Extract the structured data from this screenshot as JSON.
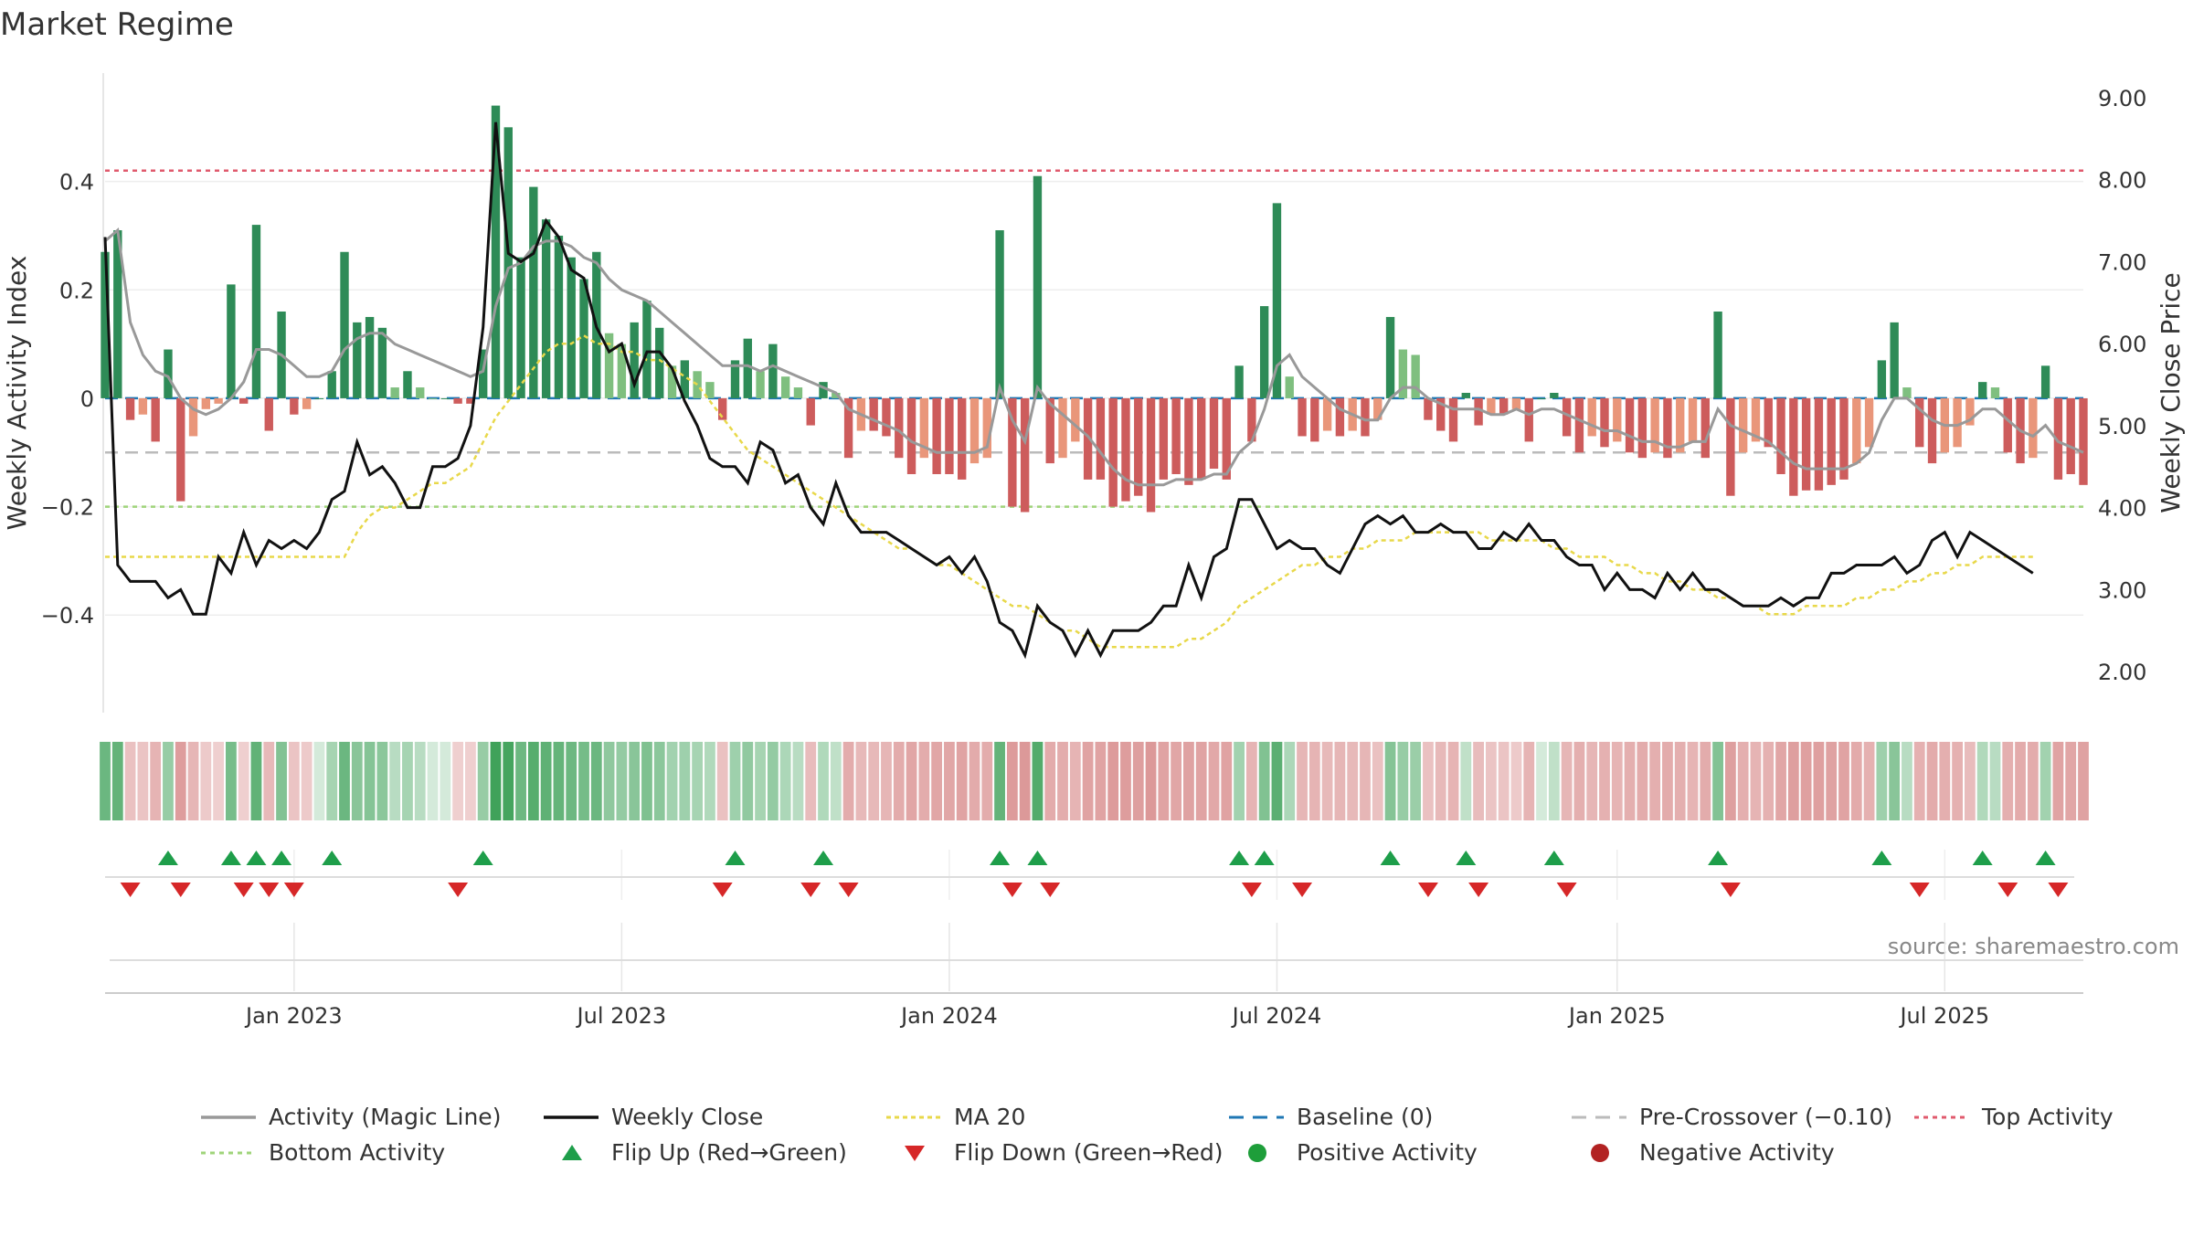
{
  "chart_data": {
    "type": "bar",
    "title": "Market Regime",
    "ylabel_left": "Weekly Activity Index",
    "ylabel_right": "Weekly Close Price",
    "source": "source: sharemaestro.com",
    "x_ticks": [
      "Jan 2023",
      "Jul 2023",
      "Jan 2024",
      "Jul 2024",
      "Jan 2025",
      "Jul 2025"
    ],
    "y_left_ticks": [
      "0.4",
      "0.2",
      "0",
      "−0.2",
      "−0.4"
    ],
    "y_left_tick_values": [
      0.4,
      0.2,
      0,
      -0.2,
      -0.4
    ],
    "y_right_ticks": [
      "9.00",
      "8.00",
      "7.00",
      "6.00",
      "5.00",
      "4.00",
      "3.00",
      "2.00"
    ],
    "y_right_tick_values": [
      9,
      8,
      7,
      6,
      5,
      4,
      3,
      2
    ],
    "ylim_left": [
      -0.58,
      0.6
    ],
    "ylim_right": [
      1.5,
      9.3
    ],
    "week_range": [
      0,
      157
    ],
    "reference_lines": {
      "top_activity": 0.42,
      "baseline": 0,
      "pre_crossover": -0.1,
      "bottom_activity": -0.2
    },
    "activity": [
      0.27,
      0.31,
      -0.04,
      -0.03,
      -0.08,
      0.09,
      -0.19,
      -0.07,
      -0.02,
      -0.01,
      0.21,
      -0.01,
      0.32,
      -0.06,
      0.16,
      -0.03,
      -0.02,
      0.0,
      0.05,
      0.27,
      0.14,
      0.15,
      0.13,
      0.02,
      0.05,
      0.02,
      0.0,
      0.0,
      -0.01,
      -0.01,
      0.09,
      0.54,
      0.5,
      0.26,
      0.39,
      0.33,
      0.3,
      0.26,
      0.22,
      0.27,
      0.12,
      0.1,
      0.14,
      0.18,
      0.13,
      0.06,
      0.07,
      0.05,
      0.03,
      -0.04,
      0.07,
      0.11,
      0.05,
      0.1,
      0.04,
      0.02,
      -0.05,
      0.03,
      0.01,
      -0.11,
      -0.06,
      -0.06,
      -0.07,
      -0.11,
      -0.14,
      -0.11,
      -0.14,
      -0.14,
      -0.15,
      -0.12,
      -0.11,
      0.31,
      -0.2,
      -0.21,
      0.41,
      -0.12,
      -0.11,
      -0.08,
      -0.15,
      -0.15,
      -0.2,
      -0.19,
      -0.18,
      -0.21,
      -0.15,
      -0.14,
      -0.16,
      -0.15,
      -0.13,
      -0.15,
      0.06,
      -0.08,
      0.17,
      0.36,
      0.04,
      -0.07,
      -0.08,
      -0.06,
      -0.07,
      -0.06,
      -0.07,
      -0.04,
      0.15,
      0.09,
      0.08,
      -0.04,
      -0.06,
      -0.08,
      0.01,
      -0.05,
      -0.03,
      -0.03,
      -0.02,
      -0.08,
      0.0,
      0.01,
      -0.07,
      -0.1,
      -0.07,
      -0.09,
      -0.08,
      -0.1,
      -0.11,
      -0.1,
      -0.11,
      -0.1,
      -0.08,
      -0.11,
      0.16,
      -0.18,
      -0.1,
      -0.08,
      -0.09,
      -0.14,
      -0.18,
      -0.17,
      -0.17,
      -0.16,
      -0.15,
      -0.12,
      -0.09,
      0.07,
      0.14,
      0.02,
      -0.09,
      -0.12,
      -0.1,
      -0.09,
      -0.05,
      0.03,
      0.02,
      -0.1,
      -0.12,
      -0.11,
      0.06,
      -0.15,
      -0.14,
      -0.16
    ],
    "magic_line": [
      0.29,
      0.31,
      0.14,
      0.08,
      0.05,
      0.04,
      0.0,
      -0.02,
      -0.03,
      -0.02,
      0.0,
      0.03,
      0.09,
      0.09,
      0.08,
      0.06,
      0.04,
      0.04,
      0.05,
      0.09,
      0.11,
      0.12,
      0.12,
      0.1,
      0.09,
      0.08,
      0.07,
      0.06,
      0.05,
      0.04,
      0.05,
      0.17,
      0.24,
      0.25,
      0.28,
      0.29,
      0.29,
      0.28,
      0.26,
      0.25,
      0.22,
      0.2,
      0.19,
      0.18,
      0.16,
      0.14,
      0.12,
      0.1,
      0.08,
      0.06,
      0.06,
      0.06,
      0.05,
      0.06,
      0.05,
      0.04,
      0.03,
      0.02,
      0.01,
      -0.02,
      -0.03,
      -0.04,
      -0.05,
      -0.06,
      -0.08,
      -0.09,
      -0.1,
      -0.1,
      -0.1,
      -0.1,
      -0.09,
      0.02,
      -0.04,
      -0.08,
      0.02,
      -0.01,
      -0.03,
      -0.05,
      -0.07,
      -0.1,
      -0.13,
      -0.15,
      -0.16,
      -0.16,
      -0.16,
      -0.15,
      -0.15,
      -0.15,
      -0.14,
      -0.14,
      -0.1,
      -0.08,
      -0.02,
      0.06,
      0.08,
      0.04,
      0.02,
      0.0,
      -0.02,
      -0.03,
      -0.04,
      -0.04,
      0.0,
      0.02,
      0.02,
      0.0,
      -0.01,
      -0.02,
      -0.02,
      -0.02,
      -0.03,
      -0.03,
      -0.02,
      -0.03,
      -0.02,
      -0.02,
      -0.03,
      -0.04,
      -0.05,
      -0.06,
      -0.06,
      -0.07,
      -0.08,
      -0.08,
      -0.09,
      -0.09,
      -0.08,
      -0.08,
      -0.02,
      -0.05,
      -0.06,
      -0.07,
      -0.08,
      -0.1,
      -0.12,
      -0.13,
      -0.13,
      -0.13,
      -0.13,
      -0.12,
      -0.1,
      -0.04,
      0.0,
      0.0,
      -0.02,
      -0.04,
      -0.05,
      -0.05,
      -0.04,
      -0.02,
      -0.02,
      -0.04,
      -0.06,
      -0.07,
      -0.05,
      -0.08,
      -0.09,
      -0.1
    ],
    "weekly_close": [
      7.3,
      3.3,
      3.1,
      3.1,
      3.1,
      2.9,
      3.0,
      2.7,
      2.7,
      3.4,
      3.2,
      3.7,
      3.3,
      3.6,
      3.5,
      3.6,
      3.5,
      3.7,
      4.1,
      4.2,
      4.8,
      4.4,
      4.5,
      4.3,
      4.0,
      4.0,
      4.5,
      4.5,
      4.6,
      5.0,
      6.2,
      8.7,
      7.1,
      7.0,
      7.1,
      7.5,
      7.3,
      6.9,
      6.8,
      6.2,
      5.9,
      6.0,
      5.5,
      5.9,
      5.9,
      5.7,
      5.3,
      5.0,
      4.6,
      4.5,
      4.5,
      4.3,
      4.8,
      4.7,
      4.3,
      4.4,
      4.0,
      3.8,
      4.3,
      3.9,
      3.7,
      3.7,
      3.7,
      3.6,
      3.5,
      3.4,
      3.3,
      3.4,
      3.2,
      3.4,
      3.1,
      2.6,
      2.5,
      2.2,
      2.8,
      2.6,
      2.5,
      2.2,
      2.5,
      2.2,
      2.5,
      2.5,
      2.5,
      2.6,
      2.8,
      2.8,
      3.3,
      2.9,
      3.4,
      3.5,
      4.1,
      4.1,
      3.8,
      3.5,
      3.6,
      3.5,
      3.5,
      3.3,
      3.2,
      3.5,
      3.8,
      3.9,
      3.8,
      3.9,
      3.7,
      3.7,
      3.8,
      3.7,
      3.7,
      3.5,
      3.5,
      3.7,
      3.6,
      3.8,
      3.6,
      3.6,
      3.4,
      3.3,
      3.3,
      3.0,
      3.2,
      3.0,
      3.0,
      2.9,
      3.2,
      3.0,
      3.2,
      3.0,
      3.0,
      2.9,
      2.8,
      2.8,
      2.8,
      2.9,
      2.8,
      2.9,
      2.9,
      3.2,
      3.2,
      3.3,
      3.3,
      3.3,
      3.4,
      3.2,
      3.3,
      3.6,
      3.7,
      3.4,
      3.7,
      3.6,
      3.5,
      3.4,
      3.3,
      3.2
    ],
    "ma20": [
      3.4,
      3.4,
      3.4,
      3.4,
      3.4,
      3.4,
      3.4,
      3.4,
      3.4,
      3.4,
      3.4,
      3.4,
      3.4,
      3.4,
      3.4,
      3.4,
      3.4,
      3.4,
      3.4,
      3.4,
      3.7,
      3.9,
      4.0,
      4.0,
      4.1,
      4.2,
      4.3,
      4.3,
      4.4,
      4.5,
      4.8,
      5.1,
      5.3,
      5.5,
      5.7,
      5.9,
      6.0,
      6.0,
      6.1,
      6.0,
      6.0,
      5.9,
      5.9,
      5.8,
      5.8,
      5.7,
      5.6,
      5.5,
      5.3,
      5.1,
      4.9,
      4.7,
      4.6,
      4.5,
      4.4,
      4.3,
      4.2,
      4.1,
      4.0,
      3.9,
      3.8,
      3.7,
      3.6,
      3.5,
      3.5,
      3.4,
      3.3,
      3.3,
      3.2,
      3.1,
      3.0,
      2.9,
      2.8,
      2.8,
      2.7,
      2.6,
      2.5,
      2.5,
      2.4,
      2.3,
      2.3,
      2.3,
      2.3,
      2.3,
      2.3,
      2.3,
      2.4,
      2.4,
      2.5,
      2.6,
      2.8,
      2.9,
      3.0,
      3.1,
      3.2,
      3.3,
      3.3,
      3.4,
      3.4,
      3.5,
      3.5,
      3.6,
      3.6,
      3.6,
      3.7,
      3.7,
      3.7,
      3.7,
      3.7,
      3.7,
      3.6,
      3.6,
      3.6,
      3.6,
      3.6,
      3.5,
      3.5,
      3.4,
      3.4,
      3.4,
      3.3,
      3.3,
      3.2,
      3.2,
      3.1,
      3.1,
      3.0,
      3.0,
      2.9,
      2.9,
      2.8,
      2.8,
      2.7,
      2.7,
      2.7,
      2.8,
      2.8,
      2.8,
      2.8,
      2.9,
      2.9,
      3.0,
      3.0,
      3.1,
      3.1,
      3.2,
      3.2,
      3.3,
      3.3,
      3.4,
      3.4,
      3.4,
      3.4,
      3.4
    ]
  },
  "legend": {
    "items": [
      {
        "key": "magic",
        "label": "Activity (Magic Line)"
      },
      {
        "key": "close",
        "label": "Weekly Close"
      },
      {
        "key": "ma",
        "label": "MA 20"
      },
      {
        "key": "base",
        "label": "Baseline (0)"
      },
      {
        "key": "pre",
        "label": "Pre-Crossover (−0.10)"
      },
      {
        "key": "top",
        "label": "Top Activity"
      },
      {
        "key": "bottom",
        "label": "Bottom Activity"
      },
      {
        "key": "flipup",
        "label": "Flip Up (Red→Green)"
      },
      {
        "key": "flipdown",
        "label": "Flip Down (Green→Red)"
      },
      {
        "key": "pos",
        "label": "Positive Activity"
      },
      {
        "key": "neg",
        "label": "Negative Activity"
      }
    ]
  },
  "colors": {
    "green_strong": "#2e8b57",
    "green_light": "#7fbf7f",
    "red_strong": "#cd5c5c",
    "red_light": "#e9967a",
    "close": "#111111",
    "magic": "#999999",
    "ma": "#e8d84a",
    "baseline": "#1f77b4",
    "pre": "#bbbbbb",
    "top": "#e05a6d",
    "bottom": "#9fd47a",
    "flip_up": "#1e9e4a",
    "flip_down": "#d62728",
    "pos_dot": "#1e9e3a",
    "neg_dot": "#b22222"
  }
}
